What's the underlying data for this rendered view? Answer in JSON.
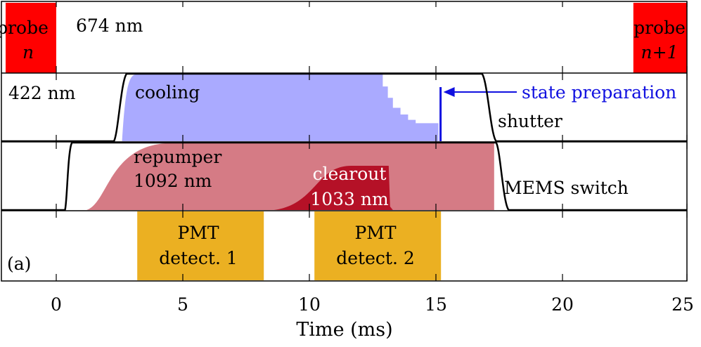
{
  "chart_data": {
    "type": "timing-diagram",
    "xlabel": "Time (ms)",
    "xlim": [
      0,
      25
    ],
    "x_ticks": [
      "0",
      "5",
      "10",
      "15",
      "20",
      "25"
    ],
    "panel_label": "(a)",
    "rows": [
      {
        "wavelength": "674 nm",
        "pulses": [
          {
            "line1": "probe",
            "line2": "n",
            "start": -2,
            "end": 0,
            "color": "#ff0000"
          },
          {
            "line1": "probe",
            "line2": "n+1",
            "start": 22.8,
            "end": 25,
            "color": "#ff0000"
          }
        ]
      },
      {
        "wavelength": "422 nm",
        "cooling": {
          "label": "cooling",
          "start": 2.6,
          "end": 12.9,
          "color": "#aaaaff",
          "steps": [
            [
              12.9,
              0.82
            ],
            [
              13.1,
              0.65
            ],
            [
              13.3,
              0.5
            ],
            [
              13.6,
              0.4
            ],
            [
              13.9,
              0.32
            ],
            [
              14.2,
              0.27
            ],
            [
              15.1,
              0.27
            ]
          ]
        },
        "state_preparation": {
          "label": "state preparation",
          "time": 15.1,
          "color": "#1010e0"
        },
        "shutter": {
          "label": "shutter",
          "open": 2.5,
          "close": 17.1
        }
      },
      {
        "repumper": {
          "line1": "repumper",
          "line2": "1092 nm",
          "start": 0.7,
          "end": 17.3,
          "color": "#d57b85"
        },
        "clearout": {
          "line1": "clearout",
          "line2": "1033 nm",
          "start": 8.6,
          "end": 13.3,
          "color": "#b51127"
        },
        "mems": {
          "label": "MEMS switch",
          "on": 0.4,
          "off": 17.6
        }
      },
      {
        "detections": [
          {
            "line1": "PMT",
            "line2": "detect. 1",
            "start": 3.2,
            "end": 8.2,
            "color": "#ebb022"
          },
          {
            "line1": "PMT",
            "line2": "detect. 2",
            "start": 10.2,
            "end": 15.2,
            "color": "#ebb022"
          }
        ]
      }
    ]
  }
}
